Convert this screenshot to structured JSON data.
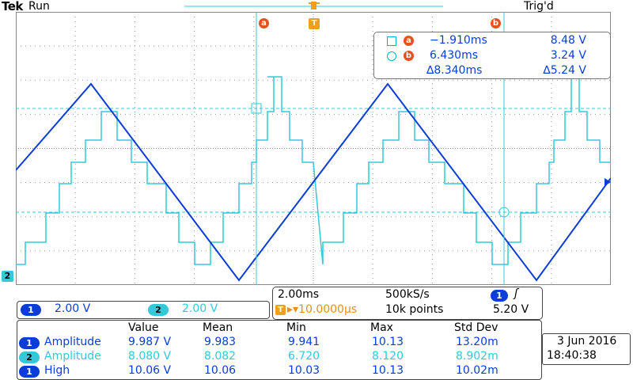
{
  "header": {
    "brand": "Tek",
    "run_state": "Run",
    "trigger_state": "Trig'd"
  },
  "markers": {
    "cursor_a": "a",
    "cursor_b": "b",
    "trigger": "T",
    "ch2_ground": "2"
  },
  "channels": {
    "ch1": {
      "badge": "1",
      "color": "#0a3dd8",
      "scale": "2.00 V"
    },
    "ch2": {
      "badge": "2",
      "color": "#34c8d8",
      "scale": "2.00 V"
    }
  },
  "cursor_readout": {
    "a": {
      "badge": "a",
      "time": "−1.910ms",
      "volt": "8.48 V"
    },
    "b": {
      "badge": "b",
      "time": "6.430ms",
      "volt": "3.24 V"
    },
    "delta": {
      "time": "∆8.340ms",
      "volt": "∆5.24 V"
    }
  },
  "timebase": {
    "scale": "2.00ms",
    "sample_rate": "500kS/s",
    "trigger_badge": "T",
    "trigger_position": "▸▾10.0000µs",
    "record_length": "10k points",
    "trigger_source": "1",
    "trigger_slope": "ʃ",
    "trigger_level": "5.20 V"
  },
  "measurements": {
    "headers": [
      "Value",
      "Mean",
      "Min",
      "Max",
      "Std Dev"
    ],
    "rows": [
      {
        "ch": "1",
        "name": "Amplitude",
        "value": "9.987 V",
        "mean": "9.983",
        "min": "9.941",
        "max": "10.13",
        "std": "13.20m"
      },
      {
        "ch": "2",
        "name": "Amplitude",
        "value": "8.080 V",
        "mean": "8.082",
        "min": "6.720",
        "max": "8.120",
        "std": "8.902m"
      },
      {
        "ch": "1",
        "name": "High",
        "value": "10.06 V",
        "mean": "10.06",
        "min": "10.03",
        "max": "10.13",
        "std": "10.02m"
      }
    ]
  },
  "datetime": {
    "date": "3 Jun 2016",
    "time": "18:40:38"
  },
  "style": {
    "grid": "#888888",
    "cursor_color": "#34c8d8",
    "accent": "#e8501e",
    "trigger_color": "#f0a020"
  }
}
